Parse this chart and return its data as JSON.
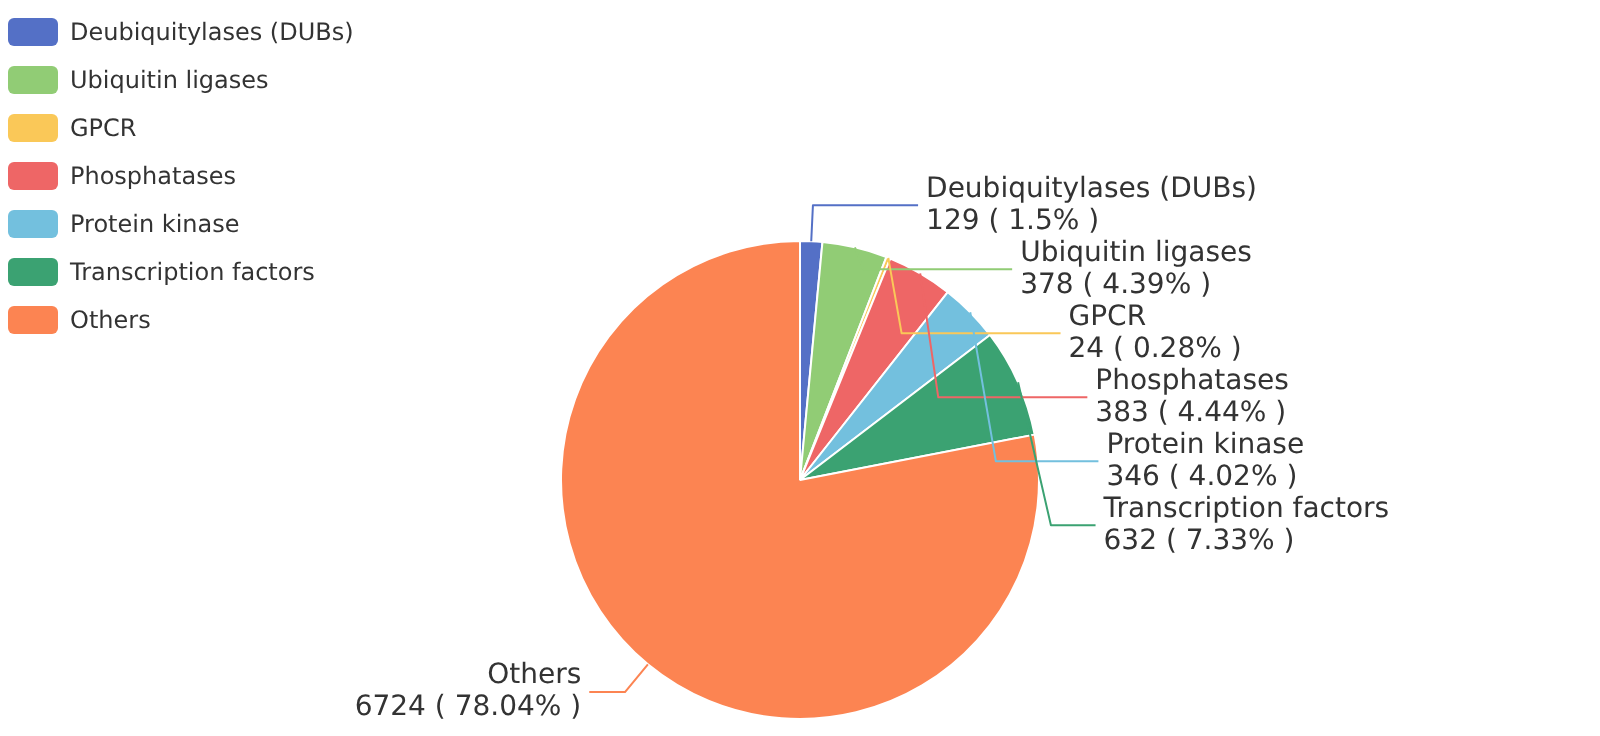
{
  "chart_data": {
    "type": "pie",
    "categories": [
      "Deubiquitylases (DUBs)",
      "Ubiquitin ligases",
      "GPCR",
      "Phosphatases",
      "Protein kinase",
      "Transcription factors",
      "Others"
    ],
    "values": [
      129,
      378,
      24,
      383,
      346,
      632,
      6724
    ],
    "value_labels": [
      "129 ( 1.5% )",
      "378 ( 4.39% )",
      "24 ( 0.28% )",
      "383 ( 4.44% )",
      "346 ( 4.02% )",
      "632 ( 7.33% )",
      "6724 ( 78.04% )"
    ],
    "colors": [
      "#5470c6",
      "#91cc75",
      "#fac858",
      "#ee6666",
      "#73c0de",
      "#3ba272",
      "#fc8452"
    ],
    "legend": "top left"
  }
}
